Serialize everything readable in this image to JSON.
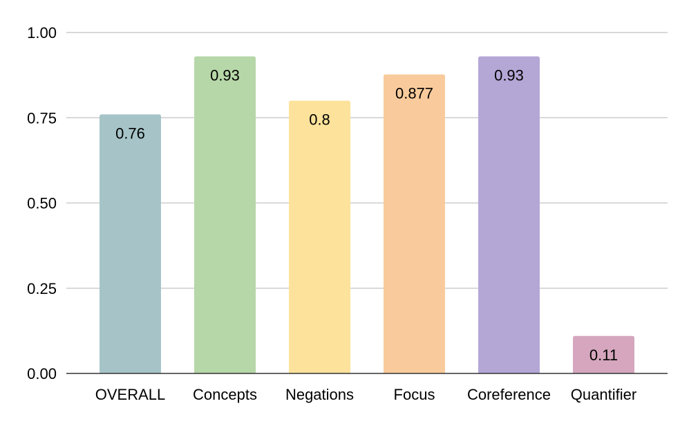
{
  "chart_data": {
    "type": "bar",
    "title": "",
    "xlabel": "",
    "ylabel": "",
    "categories": [
      "OVERALL",
      "Concepts",
      "Negations",
      "Focus",
      "Coreference",
      "Quantifier"
    ],
    "values": [
      0.76,
      0.93,
      0.8,
      0.877,
      0.93,
      0.11
    ],
    "data_labels": [
      "0.76",
      "0.93",
      "0.8",
      "0.877",
      "0.93",
      "0.11"
    ],
    "colors": [
      "#a6c4c8",
      "#b6d7a8",
      "#fde29b",
      "#f9cb9c",
      "#b4a7d6",
      "#d5a6bd"
    ],
    "ylim": [
      0,
      1
    ],
    "yticks": [
      0,
      0.25,
      0.5,
      0.75,
      1
    ],
    "ytick_labels": [
      "0.00",
      "0.25",
      "0.50",
      "0.75",
      "1.00"
    ],
    "grid": true,
    "legend": "none"
  }
}
